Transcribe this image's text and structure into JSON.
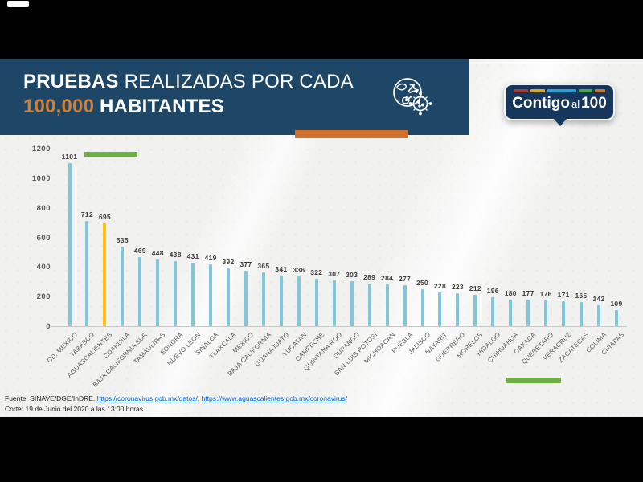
{
  "slide": {
    "title": {
      "line1_bold": "PRUEBAS",
      "line1_rest": " REALIZADAS POR CADA",
      "line2_accent": "100,000",
      "line2_rest": " HABITANTES"
    },
    "logo": {
      "word1": "Contigo",
      "word2": "al",
      "word3": "100",
      "stripes": [
        {
          "color": "#ad3a33",
          "width": 18
        },
        {
          "color": "#d8a826",
          "width": 18
        },
        {
          "color": "#2ca0d3",
          "width": 36
        },
        {
          "color": "#4fa646",
          "width": 17
        },
        {
          "color": "#c5772f",
          "width": 13
        }
      ]
    },
    "footer": {
      "source_prefix": "Fuente: SINAVE/DGE/InDRE. ",
      "link1": "https://coronavirus.gob.mx/datos/",
      "separator": ", ",
      "link2": "https://www.aguascalientes.gob.mx/coronavirus/",
      "cutoff": "Corte: 19 de Junio del 2020 a las 13:00 horas"
    }
  },
  "chart_data": {
    "type": "bar",
    "title": "PRUEBAS REALIZADAS POR CADA 100,000 HABITANTES",
    "categories": [
      "CD. MEXICO",
      "TABASCO",
      "AGUASCALIENTES",
      "COAHUILA",
      "BAJA CALIFORNIA SUR",
      "TAMAULIPAS",
      "SONORA",
      "NUEVO LEON",
      "SINALOA",
      "TLAXCALA",
      "MEXICO",
      "BAJA CALIFORNIA",
      "GUANAJUATO",
      "YUCATAN",
      "CAMPECHE",
      "QUINTANA ROO",
      "DURANGO",
      "SAN LUIS POTOSI",
      "MICHOACAN",
      "PUEBLA",
      "JALISCO",
      "NAYARIT",
      "GUERRERO",
      "MORELOS",
      "HIDALGO",
      "CHIHUAHUA",
      "OAXACA",
      "QUERETARO",
      "VERACRUZ",
      "ZACATECAS",
      "COLIMA",
      "CHIAPAS"
    ],
    "values": [
      1101,
      712,
      695,
      535,
      469,
      448,
      438,
      431,
      419,
      392,
      377,
      365,
      341,
      336,
      322,
      307,
      303,
      289,
      284,
      277,
      250,
      228,
      223,
      212,
      196,
      180,
      177,
      176,
      171,
      165,
      142,
      109
    ],
    "highlight_index": 2,
    "highlight_category": "AGUASCALIENTES",
    "ylim": [
      0,
      1200
    ],
    "y_ticks": [
      0,
      200,
      400,
      600,
      800,
      1000,
      1200
    ],
    "grid": false,
    "legend": false,
    "bar_color": "#82c6db",
    "highlight_color": "#fdbe19",
    "accent_mark_color": "#6fae47"
  },
  "colors": {
    "header_bg": "#1e4666",
    "accent_orange": "#d0702a",
    "title_accent": "#d57e30",
    "background": "#f1f1f0",
    "black_bar": "#000000",
    "link": "#0563c1",
    "logo_bg": "#16375b"
  }
}
